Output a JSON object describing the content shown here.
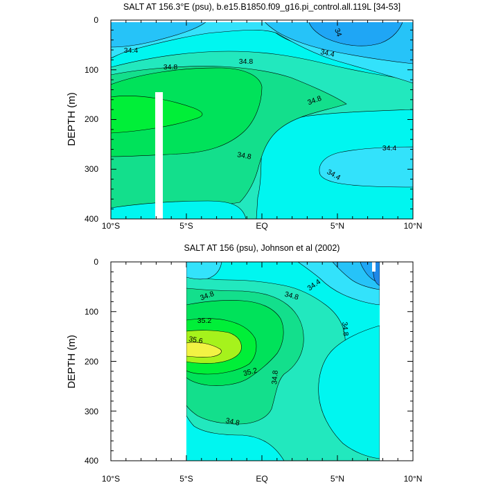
{
  "chart_data": [
    {
      "type": "heatmap",
      "title": "SALT AT 156.3°E (psu), b.e15.B1850.f09_g16.pi_control.all.119L [34-53]",
      "ylabel": "DEPTH (m)",
      "xlabel": "",
      "xlim": [
        -10,
        10
      ],
      "ylim": [
        400,
        0
      ],
      "x_ticks": [
        "10°S",
        "5°S",
        "EQ",
        "5°N",
        "10°N"
      ],
      "y_ticks": [
        "0",
        "100",
        "200",
        "300",
        "400"
      ],
      "contour_labels": [
        "34.4",
        "34.8",
        "34.8",
        "34",
        "34.4",
        "34.8",
        "34.8",
        "34.4",
        "34.4"
      ],
      "levels": [
        {
          "min": 33.8,
          "max": 34.0,
          "color": "#1fa6f5"
        },
        {
          "min": 34.0,
          "max": 34.2,
          "color": "#26c3f8"
        },
        {
          "min": 34.2,
          "max": 34.4,
          "color": "#33e2fb"
        },
        {
          "min": 34.4,
          "max": 34.6,
          "color": "#00f6f0"
        },
        {
          "min": 34.6,
          "max": 34.8,
          "color": "#22e8be"
        },
        {
          "min": 34.8,
          "max": 35.0,
          "color": "#13df8c"
        },
        {
          "min": 35.0,
          "max": 35.2,
          "color": "#00e25a"
        },
        {
          "min": 35.2,
          "max": 35.4,
          "color": "#00ef38"
        }
      ],
      "missing_band_x": [
        -7,
        -6.6
      ]
    },
    {
      "type": "heatmap",
      "title": "SALT AT 156 (psu), Johnson et al (2002)",
      "ylabel": "DEPTH (m)",
      "xlabel": "",
      "xlim": [
        -10,
        10
      ],
      "ylim": [
        400,
        0
      ],
      "data_xlim": [
        -5,
        8
      ],
      "x_ticks": [
        "10°S",
        "5°S",
        "EQ",
        "5°N",
        "10°N"
      ],
      "y_ticks": [
        "0",
        "100",
        "200",
        "300",
        "400"
      ],
      "contour_labels": [
        "34.8",
        "35.2",
        "35.6",
        "35.2",
        "34.8",
        "34.8",
        "34.4",
        "34.8",
        "34.8"
      ],
      "levels": [
        {
          "min": 33.6,
          "max": 34.0,
          "color": "#1e88e8"
        },
        {
          "min": 34.0,
          "max": 34.2,
          "color": "#26c3f8"
        },
        {
          "min": 34.2,
          "max": 34.4,
          "color": "#33e2fb"
        },
        {
          "min": 34.4,
          "max": 34.6,
          "color": "#00f6f0"
        },
        {
          "min": 34.6,
          "max": 34.8,
          "color": "#22e8be"
        },
        {
          "min": 34.8,
          "max": 35.0,
          "color": "#13df8c"
        },
        {
          "min": 35.0,
          "max": 35.2,
          "color": "#00e25a"
        },
        {
          "min": 35.2,
          "max": 35.4,
          "color": "#00ef38"
        },
        {
          "min": 35.4,
          "max": 35.6,
          "color": "#a6f21c"
        },
        {
          "min": 35.6,
          "max": 35.8,
          "color": "#f2f244"
        }
      ]
    }
  ]
}
